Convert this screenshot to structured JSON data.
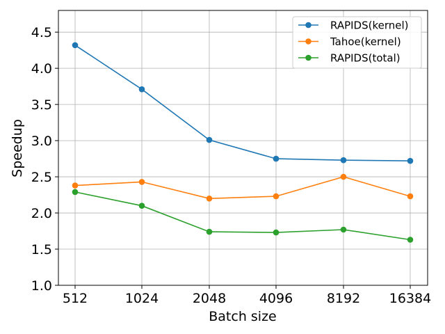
{
  "chart_data": {
    "type": "line",
    "title": "",
    "xlabel": "Batch size",
    "ylabel": "Speedup",
    "categories": [
      "512",
      "1024",
      "2048",
      "4096",
      "8192",
      "16384"
    ],
    "ylim": [
      1.0,
      4.8
    ],
    "yticks": [
      "1.0",
      "1.5",
      "2.0",
      "2.5",
      "3.0",
      "3.5",
      "4.0",
      "4.5"
    ],
    "grid": true,
    "legend_position": "top-right",
    "series": [
      {
        "name": "RAPIDS(kernel)",
        "color": "#1f77b4",
        "values": [
          4.32,
          3.71,
          3.01,
          2.75,
          2.73,
          2.72
        ]
      },
      {
        "name": "Tahoe(kernel)",
        "color": "#ff7f0e",
        "values": [
          2.38,
          2.43,
          2.2,
          2.23,
          2.5,
          2.23
        ]
      },
      {
        "name": "RAPIDS(total)",
        "color": "#2ca02c",
        "values": [
          2.29,
          2.1,
          1.74,
          1.73,
          1.77,
          1.63
        ]
      }
    ]
  }
}
